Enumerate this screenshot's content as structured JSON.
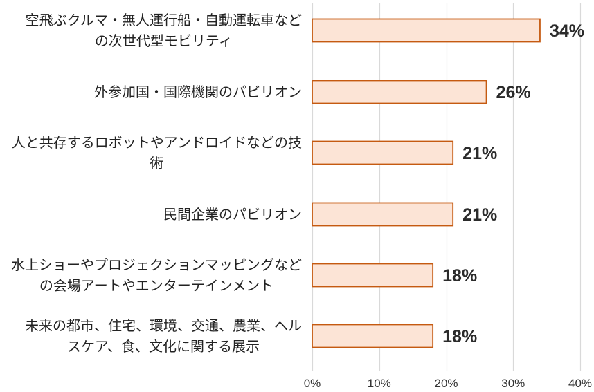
{
  "chart_data": {
    "type": "bar",
    "orientation": "horizontal",
    "categories": [
      [
        "空飛ぶクルマ・無人運行船・自動運転車など",
        "の次世代型モビリティ"
      ],
      [
        "外参加国・国際機関のパビリオン"
      ],
      [
        "人と共存するロボットやアンドロイドなどの技",
        "術"
      ],
      [
        "民間企業のパビリオン"
      ],
      [
        "水上ショーやプロジェクションマッピングなど",
        "の会場アートやエンターテインメント"
      ],
      [
        "未来の都市、住宅、環境、交通、農業、ヘル",
        "スケア、食、文化に関する展示"
      ]
    ],
    "values": [
      34,
      26,
      21,
      21,
      18,
      18
    ],
    "value_labels": [
      "34%",
      "26%",
      "21%",
      "21%",
      "18%",
      "18%"
    ],
    "xlim": [
      0,
      40
    ],
    "xticks": [
      0,
      10,
      20,
      30,
      40
    ],
    "xtick_labels": [
      "0%",
      "10%",
      "20%",
      "30%",
      "40%"
    ],
    "grid": true,
    "bar_fill": "#fce4d6",
    "bar_stroke": "#c55a11",
    "grid_color": "#d9d9d9"
  }
}
